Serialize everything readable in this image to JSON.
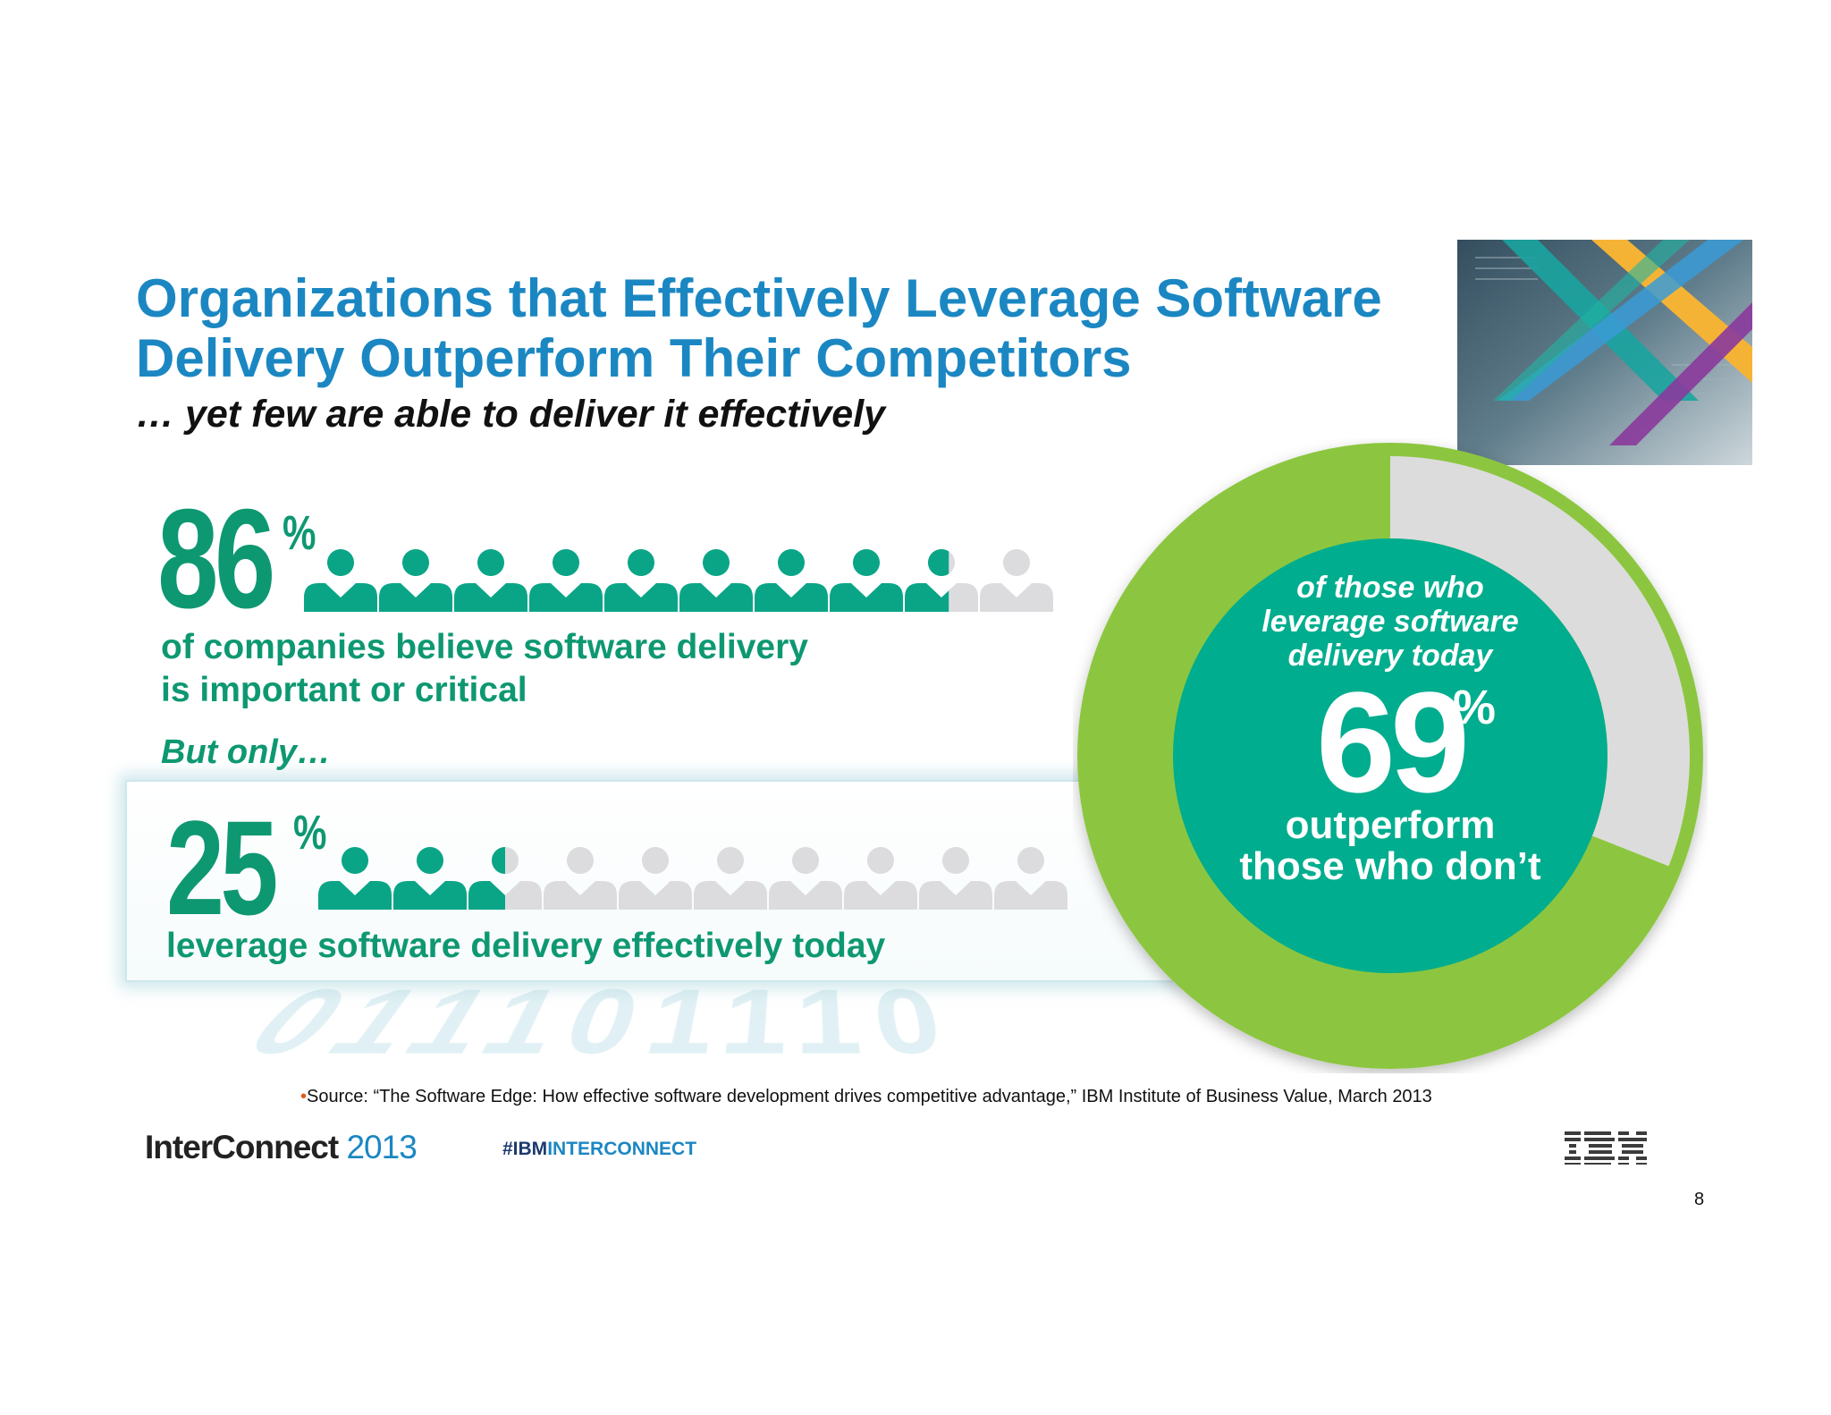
{
  "slide": {
    "title": "Organizations that Effectively Leverage Software Delivery Outperform Their Competitors",
    "subtitle": "… yet few are able to deliver it effectively"
  },
  "stat1": {
    "value": "86",
    "percent": "%",
    "line1": "of companies believe software delivery",
    "line2": "is important or critical",
    "filled_fraction": 0.86
  },
  "transition": "But only…",
  "stat2": {
    "value": "25",
    "percent": "%",
    "text": "leverage software delivery effectively today",
    "filled_fraction": 0.25
  },
  "donut": {
    "top_line1": "of those who",
    "top_line2": "leverage software",
    "top_line3": "delivery today",
    "value": "69",
    "percent": "%",
    "bottom_line1": "outperform",
    "bottom_line2": "those who don’t",
    "filled_fraction": 0.69
  },
  "binary_text": "011101110",
  "footer": {
    "source_bullet": "•",
    "source": "Source: “The Software Edge: How effective software development drives competitive advantage,” IBM Institute of Business Value, March 2013",
    "brand_name": "InterConnect",
    "brand_year": "2013",
    "hashtag_prefix": "#IBM",
    "hashtag_rest": "INTERCONNECT",
    "page_number": "8"
  },
  "colors": {
    "title_blue": "#1b87c2",
    "stat_green": "#0e9872",
    "person_filled": "#0aa587",
    "person_empty": "#dcdcdf",
    "donut_green": "#8cc63f",
    "donut_gray": "#dcdcdc",
    "donut_center": "#00ad8e"
  },
  "icons": [
    "person-icon",
    "ibm-logo",
    "corner-stripes-graphic"
  ]
}
